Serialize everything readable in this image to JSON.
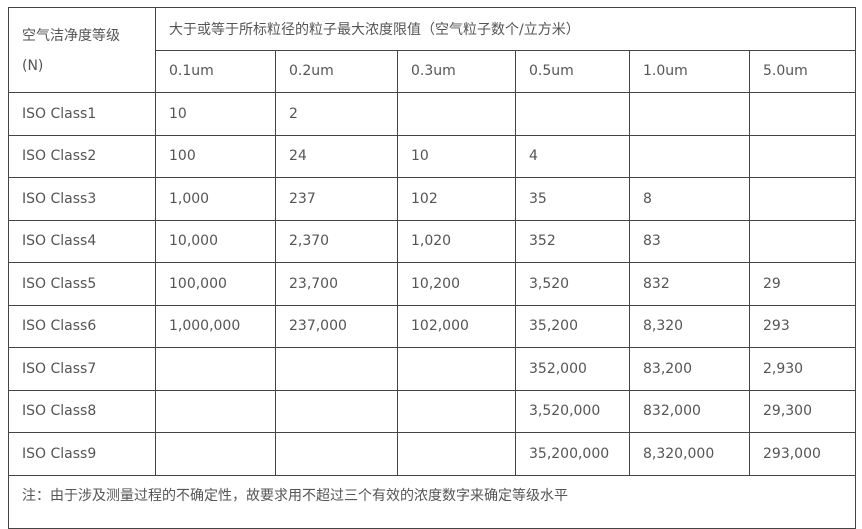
{
  "table": {
    "class_header_line1": "空气洁净度等级",
    "class_header_line2": "(N)",
    "group_header": "大于或等于所标粒径的粒子最大浓度限值（空气粒子数个/立方米）",
    "sizes": [
      "0.1um",
      "0.2um",
      "0.3um",
      "0.5um",
      "1.0um",
      "5.0um"
    ],
    "rows": [
      {
        "class": "ISO Class1",
        "values": [
          "10",
          "2",
          "",
          "",
          "",
          ""
        ]
      },
      {
        "class": "ISO Class2",
        "values": [
          "100",
          "24",
          "10",
          "4",
          "",
          ""
        ]
      },
      {
        "class": "ISO Class3",
        "values": [
          "1,000",
          "237",
          "102",
          "35",
          "8",
          ""
        ]
      },
      {
        "class": "ISO Class4",
        "values": [
          "10,000",
          "2,370",
          "1,020",
          "352",
          "83",
          ""
        ]
      },
      {
        "class": "ISO Class5",
        "values": [
          "100,000",
          "23,700",
          "10,200",
          "3,520",
          "832",
          "29"
        ]
      },
      {
        "class": "ISO Class6",
        "values": [
          "1,000,000",
          "237,000",
          "102,000",
          "35,200",
          "8,320",
          "293"
        ]
      },
      {
        "class": "ISO Class7",
        "values": [
          "",
          "",
          "",
          "352,000",
          "83,200",
          "2,930"
        ]
      },
      {
        "class": "ISO Class8",
        "values": [
          "",
          "",
          "",
          "3,520,000",
          "832,000",
          "29,300"
        ]
      },
      {
        "class": "ISO Class9",
        "values": [
          "",
          "",
          "",
          "35,200,000",
          "8,320,000",
          "293,000"
        ]
      }
    ],
    "note": "注：由于涉及测量过程的不确定性，故要求用不超过三个有效的浓度数字来确定等级水平"
  }
}
